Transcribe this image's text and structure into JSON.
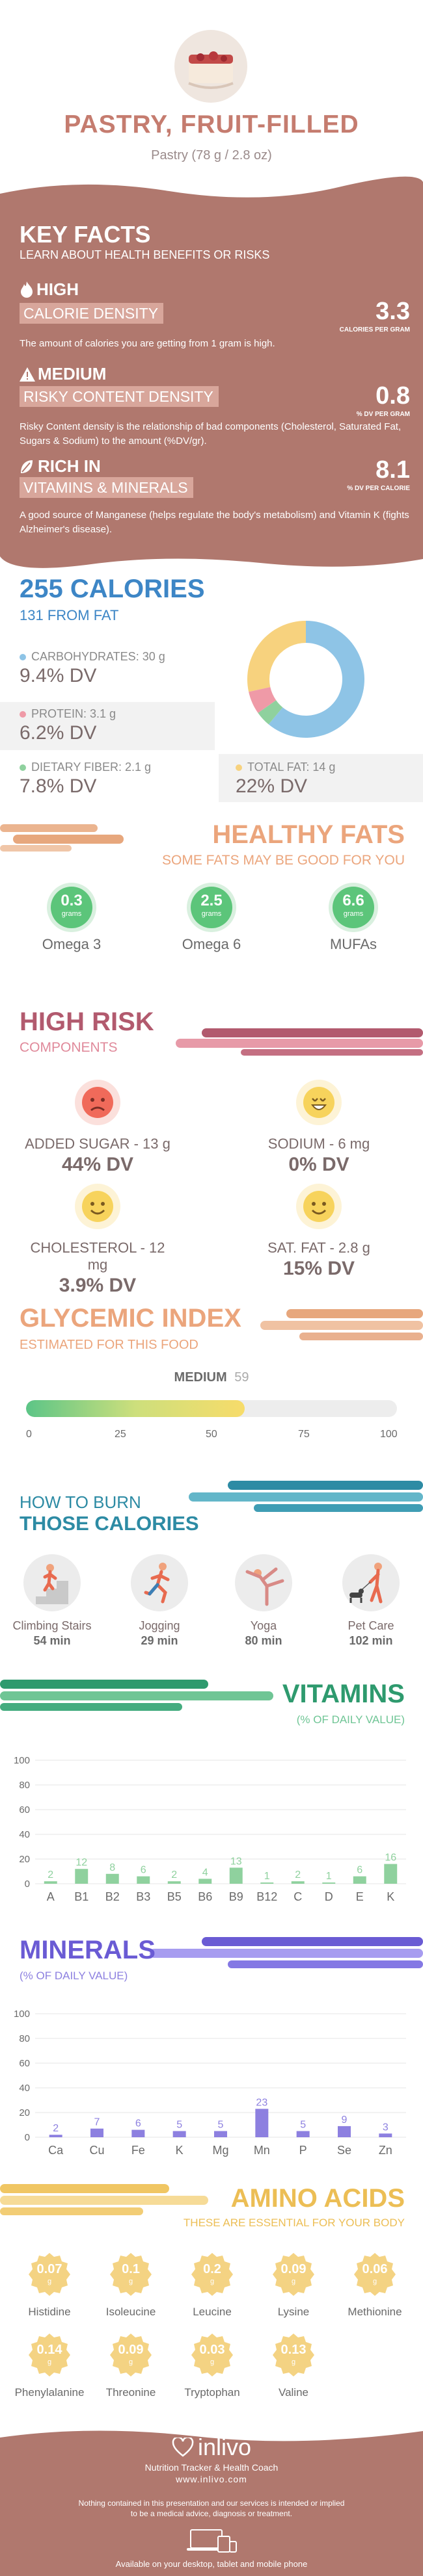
{
  "header": {
    "title": "PASTRY, FRUIT-FILLED",
    "subtitle": "Pastry (78 g / 2.8 oz)"
  },
  "key_facts": {
    "title": "KEY FACTS",
    "subtitle": "LEARN ABOUT HEALTH BENEFITS OR RISKS",
    "items": [
      {
        "level": "HIGH",
        "name": "CALORIE DENSITY",
        "value": "3.3",
        "unit": "CALORIES PER GRAM",
        "desc": "The amount of calories you are getting from 1 gram is high.",
        "icon": "fire-icon"
      },
      {
        "level": "MEDIUM",
        "name": "RISKY CONTENT DENSITY",
        "value": "0.8",
        "unit": "% DV PER GRAM",
        "desc": "Risky Content density is the relationship of bad components (Cholesterol, Saturated Fat, Sugars & Sodium) to the amount (%DV/gr).",
        "icon": "warning-icon"
      },
      {
        "level": "RICH  IN",
        "name": "VITAMINS & MINERALS",
        "value": "8.1",
        "unit": "% DV PER CALORIE",
        "desc": "A good source of Manganese (helps regulate the body's metabolism) and Vitamin K (fights Alzheimer's disease).",
        "icon": "leaf-icon"
      }
    ]
  },
  "calories": {
    "title": "255 CALORIES",
    "from_fat": "131 FROM FAT",
    "macros": [
      {
        "label": "CARBOHYDRATES: 30 g",
        "dv": "9.4% DV",
        "color": "#8ec4e6",
        "value": 30
      },
      {
        "label": "PROTEIN: 3.1 g",
        "dv": "6.2% DV",
        "color": "#ef9aa7",
        "value": 3.1
      },
      {
        "label": "DIETARY FIBER: 2.1 g",
        "dv": "7.8% DV",
        "color": "#8fd19e",
        "value": 2.1
      },
      {
        "label": "TOTAL FAT: 14 g",
        "dv": "22% DV",
        "color": "#f7d27e",
        "value": 14
      }
    ]
  },
  "healthy_fats": {
    "title": "HEALTHY FATS",
    "subtitle": "SOME FATS MAY BE GOOD FOR YOU",
    "items": [
      {
        "value": "0.3",
        "unit": "grams",
        "name": "Omega 3"
      },
      {
        "value": "2.5",
        "unit": "grams",
        "name": "Omega 6"
      },
      {
        "value": "6.6",
        "unit": "grams",
        "name": "MUFAs"
      }
    ]
  },
  "high_risk": {
    "title": "HIGH RISK",
    "subtitle": "COMPONENTS",
    "items": [
      {
        "name": "ADDED SUGAR - 13 g",
        "dv": "44% DV",
        "face": "sad-face-icon",
        "color": "#f06a5a"
      },
      {
        "name": "SODIUM - 6 mg",
        "dv": "0% DV",
        "face": "laughing-face-icon",
        "color": "#f7d35c"
      },
      {
        "name": "CHOLESTEROL - 12 mg",
        "dv": "3.9% DV",
        "face": "smile-face-icon",
        "color": "#f7d35c"
      },
      {
        "name": "SAT. FAT - 2.8 g",
        "dv": "15% DV",
        "face": "smile-face-icon",
        "color": "#f7d35c"
      }
    ]
  },
  "glycemic": {
    "title": "GLYCEMIC INDEX",
    "subtitle": "ESTIMATED FOR THIS FOOD",
    "level": "MEDIUM",
    "value": 59,
    "value_label": "59",
    "ticks": [
      "0",
      "25",
      "50",
      "75",
      "100"
    ]
  },
  "burn": {
    "title1": "HOW TO BURN",
    "title2": "THOSE CALORIES",
    "items": [
      {
        "name": "Climbing Stairs",
        "time": "54 min",
        "icon": "stairs-icon"
      },
      {
        "name": "Jogging",
        "time": "29 min",
        "icon": "jogging-icon"
      },
      {
        "name": "Yoga",
        "time": "80 min",
        "icon": "yoga-icon"
      },
      {
        "name": "Pet Care",
        "time": "102 min",
        "icon": "dog-walking-icon"
      }
    ]
  },
  "vitamins": {
    "title": "VITAMINS",
    "subtitle": "(% OF DAILY VALUE)",
    "color": "#8fd19e",
    "ylabels": [
      "100",
      "80",
      "60",
      "40",
      "20",
      "0"
    ]
  },
  "minerals": {
    "title": "MINERALS",
    "subtitle": "(% OF DAILY VALUE)",
    "color": "#8d80e0",
    "ylabels": [
      "100",
      "80",
      "60",
      "40",
      "20",
      "0"
    ]
  },
  "chart_data": [
    {
      "type": "bar",
      "categories": [
        "A",
        "B1",
        "B2",
        "B3",
        "B5",
        "B6",
        "B9",
        "B12",
        "C",
        "D",
        "E",
        "K"
      ],
      "values": [
        2,
        12,
        8,
        6,
        2,
        4,
        13,
        1,
        2,
        1,
        6,
        16
      ],
      "ylim": [
        0,
        100
      ]
    },
    {
      "type": "bar",
      "categories": [
        "Ca",
        "Cu",
        "Fe",
        "K",
        "Mg",
        "Mn",
        "P",
        "Se",
        "Zn"
      ],
      "values": [
        2,
        7,
        6,
        5,
        5,
        23,
        5,
        9,
        3
      ],
      "ylim": [
        0,
        100
      ]
    }
  ],
  "amino": {
    "title": "AMINO ACIDS",
    "subtitle": "THESE ARE ESSENTIAL FOR YOUR BODY",
    "unit": "g",
    "items": [
      {
        "value": "0.07",
        "name": "Histidine"
      },
      {
        "value": "0.1",
        "name": "Isoleucine"
      },
      {
        "value": "0.2",
        "name": "Leucine"
      },
      {
        "value": "0.09",
        "name": "Lysine"
      },
      {
        "value": "0.06",
        "name": "Methionine"
      },
      {
        "value": "0.14",
        "name": "Phenylalanine"
      },
      {
        "value": "0.09",
        "name": "Threonine"
      },
      {
        "value": "0.03",
        "name": "Tryptophan"
      },
      {
        "value": "0.13",
        "name": "Valine"
      }
    ]
  },
  "footer": {
    "brand": "inlivo",
    "tagline": "Nutrition Tracker & Health Coach",
    "url": "www.inlivo.com",
    "disclaimer1": "Nothing contained in this presentation and our services is intended or implied",
    "disclaimer2": "to be a medical advice, diagnosis or treatment.",
    "available": "Available on your desktop, tablet and mobile phone"
  }
}
